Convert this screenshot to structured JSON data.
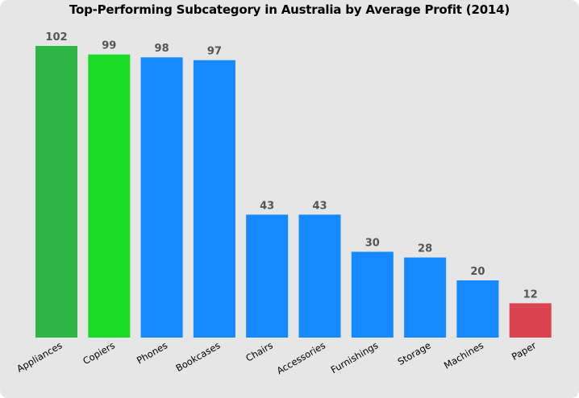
{
  "chart_data": {
    "type": "bar",
    "title": "Top-Performing Subcategory in Australia by Average Profit (2014)",
    "xlabel": "",
    "ylabel": "",
    "categories": [
      "Appliances",
      "Copiers",
      "Phones",
      "Bookcases",
      "Chairs",
      "Accessories",
      "Furnishings",
      "Storage",
      "Machines",
      "Paper"
    ],
    "values": [
      102,
      99,
      98,
      97,
      43,
      43,
      30,
      28,
      20,
      12
    ],
    "colors": [
      "#2db643",
      "#1adc27",
      "#1589ff",
      "#1589ff",
      "#1589ff",
      "#1589ff",
      "#1589ff",
      "#1589ff",
      "#1589ff",
      "#d94450"
    ],
    "ylim": [
      0,
      102
    ],
    "grid": false,
    "legend": "none",
    "data_labels": true,
    "background_color": "#e6e6e6"
  }
}
